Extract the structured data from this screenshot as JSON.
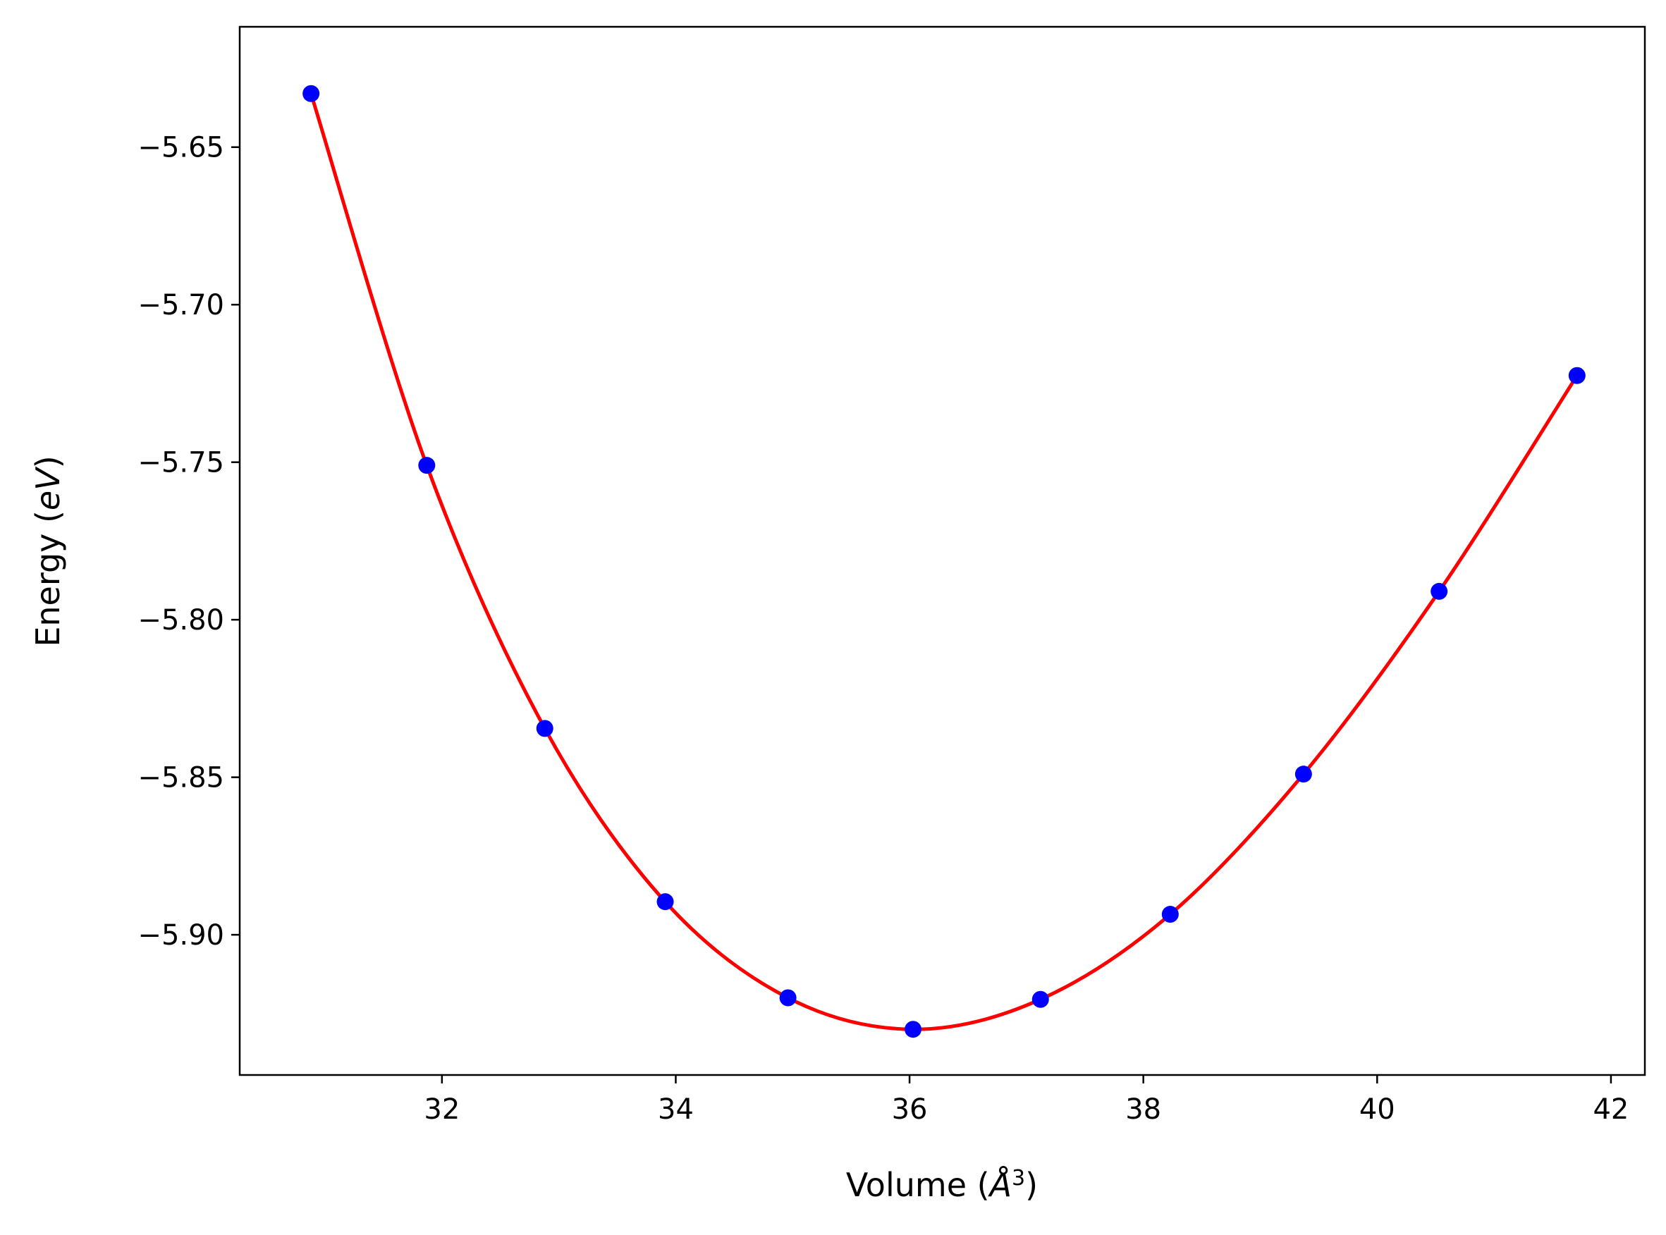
{
  "chart_data": {
    "type": "scatter",
    "xlabel": {
      "main": "Volume (",
      "italic": "Å",
      "sup": "3",
      "end": ")"
    },
    "ylabel": {
      "main": "Energy (",
      "italic": "eV",
      "end": ")"
    },
    "xlim": [
      30.27,
      42.29
    ],
    "ylim": [
      -5.9445,
      -5.6118
    ],
    "x_ticks": [
      32,
      34,
      36,
      38,
      40,
      42
    ],
    "x_tick_labels": [
      "32",
      "34",
      "36",
      "38",
      "40",
      "42"
    ],
    "y_ticks": [
      -5.65,
      -5.7,
      -5.75,
      -5.8,
      -5.85,
      -5.9
    ],
    "y_tick_labels": [
      "−5.65",
      "−5.70",
      "−5.75",
      "−5.80",
      "−5.85",
      "−5.90"
    ],
    "grid": false,
    "series": [
      {
        "kind": "points",
        "color": "#0000ff",
        "x": [
          30.88,
          31.87,
          32.88,
          33.91,
          34.96,
          36.03,
          37.12,
          38.23,
          39.37,
          40.53,
          41.71
        ],
        "y": [
          -5.633,
          -5.751,
          -5.8345,
          -5.8895,
          -5.92,
          -5.93,
          -5.9205,
          -5.8935,
          -5.849,
          -5.791,
          -5.7225
        ]
      },
      {
        "kind": "fit-curve",
        "color": "#ff0000",
        "x": [
          30.88,
          31.87,
          32.88,
          33.91,
          34.96,
          36.03,
          37.12,
          38.23,
          39.37,
          40.53,
          41.71
        ],
        "y": [
          -5.633,
          -5.751,
          -5.8345,
          -5.8895,
          -5.92,
          -5.93,
          -5.9205,
          -5.8935,
          -5.849,
          -5.791,
          -5.7225
        ]
      }
    ]
  }
}
